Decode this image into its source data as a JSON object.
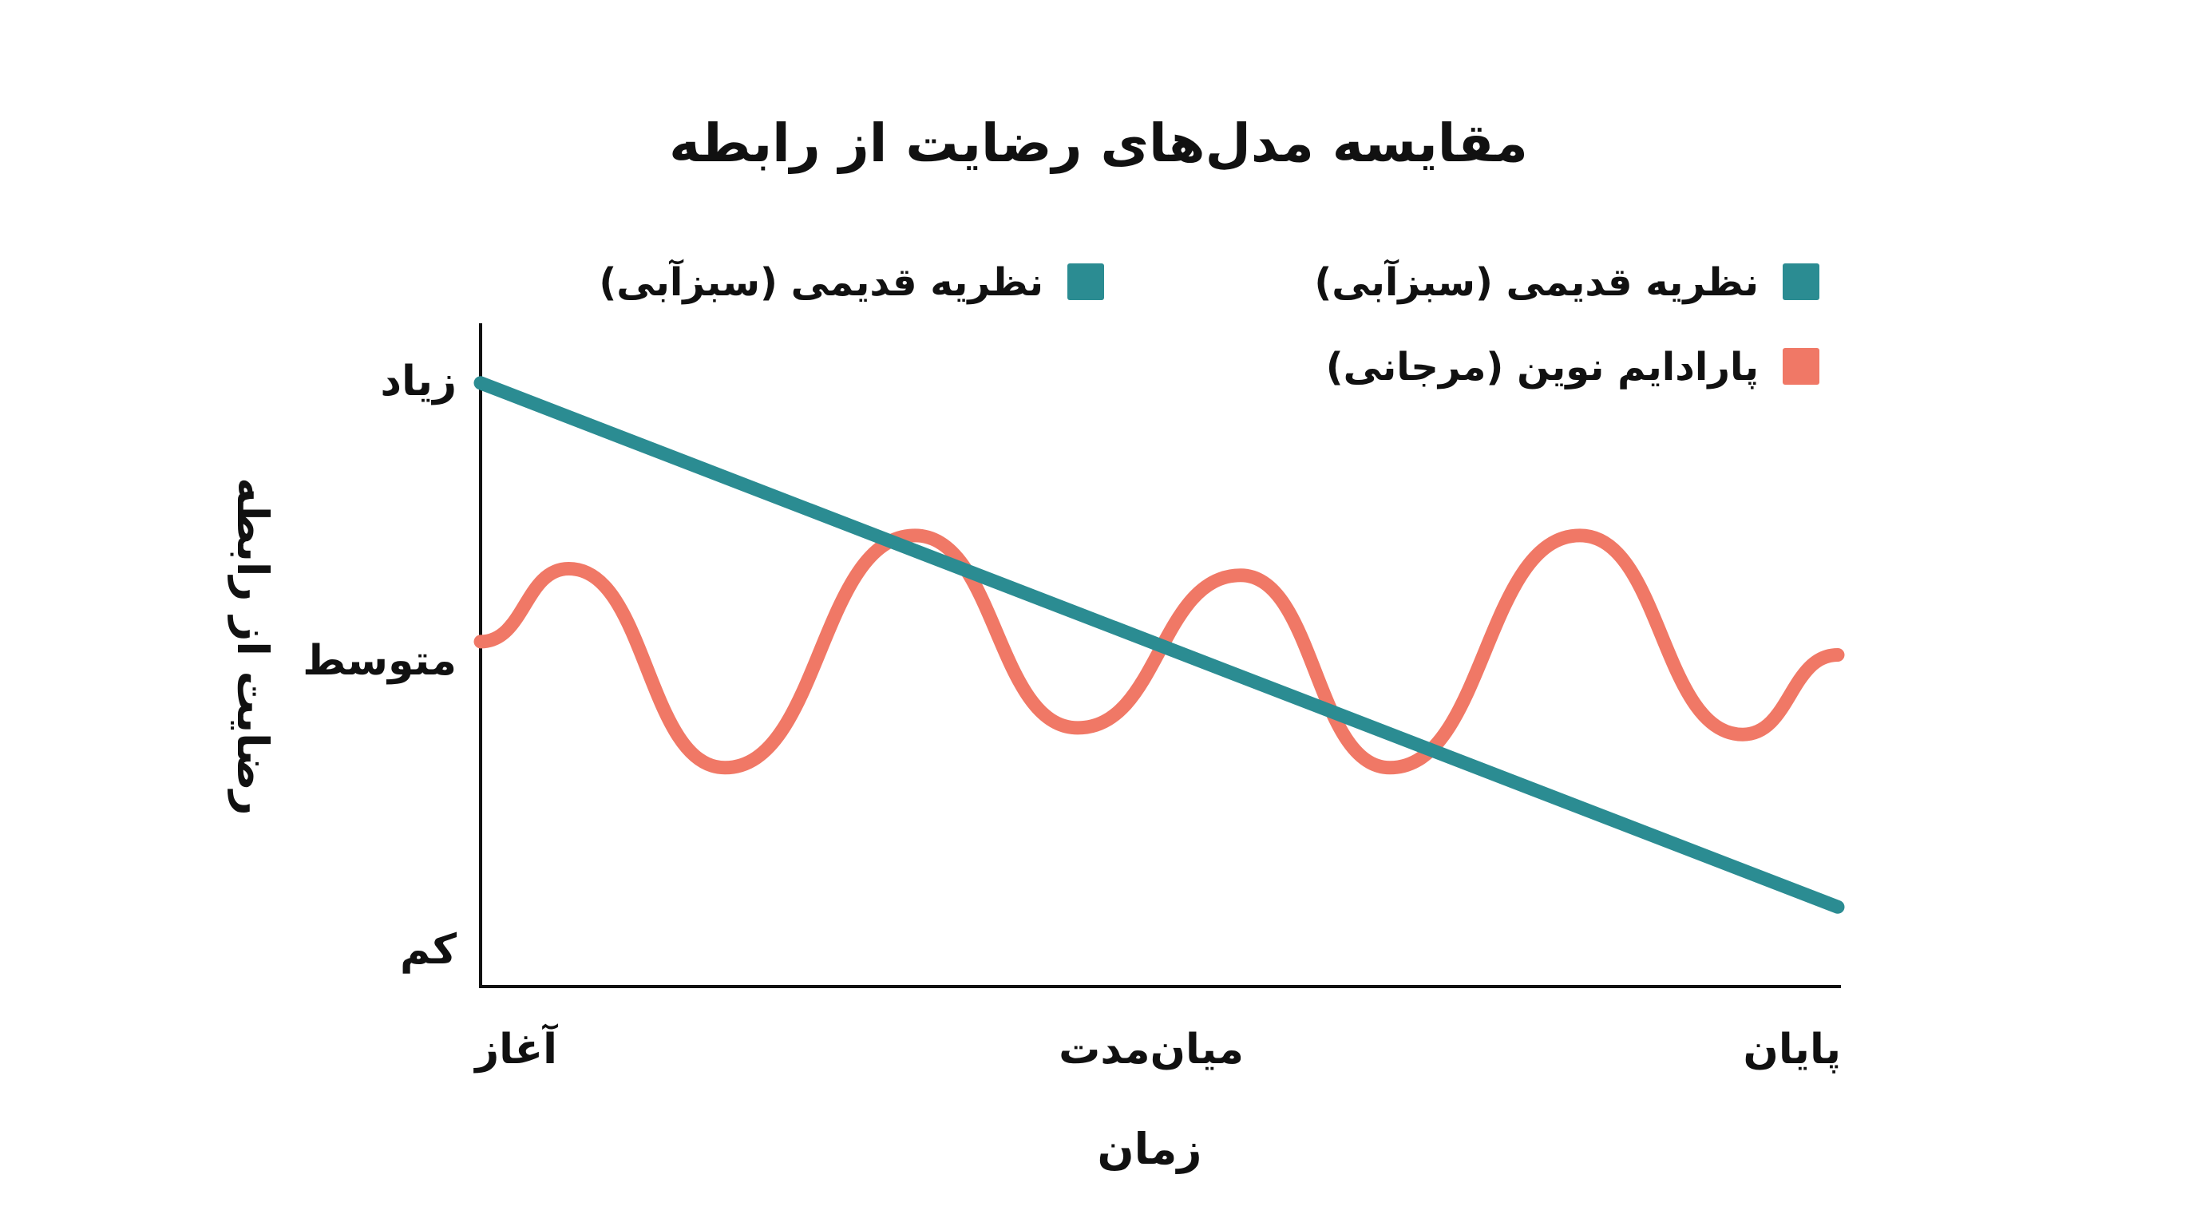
{
  "chart_data": {
    "type": "line",
    "title": "مقایسه مدل‌های رضایت از رابطه",
    "xlabel": "زمان",
    "ylabel": "رضایت از رابطه",
    "x_tick_labels": [
      "آغاز",
      "میان‌مدت",
      "پایان"
    ],
    "y_tick_labels": [
      "زیاد",
      "متوسط",
      "کم"
    ],
    "xlim": [
      0,
      1
    ],
    "ylim": [
      0,
      1
    ],
    "grid": false,
    "legend_placement": "top",
    "legend": [
      {
        "label": "نظریه قدیمی (سبزآبی)",
        "color": "#2b8c92"
      },
      {
        "label": "نظریه قدیمی (سبزآبی)",
        "color": "#2b8c92"
      },
      {
        "label": "پارادایم نوین (مرجانی)",
        "color": "#f07866"
      }
    ],
    "series": [
      {
        "name": "نظریه قدیمی (سبزآبی)",
        "color": "#2b8c92",
        "x": [
          0,
          1
        ],
        "y": [
          0.91,
          0.12
        ]
      },
      {
        "name": "پارادایم نوین (مرجانی)",
        "color": "#f07866",
        "x": [
          0,
          0.065,
          0.18,
          0.32,
          0.44,
          0.56,
          0.67,
          0.81,
          0.93,
          1
        ],
        "y": [
          0.52,
          0.63,
          0.33,
          0.68,
          0.39,
          0.62,
          0.33,
          0.68,
          0.38,
          0.5
        ]
      }
    ]
  }
}
